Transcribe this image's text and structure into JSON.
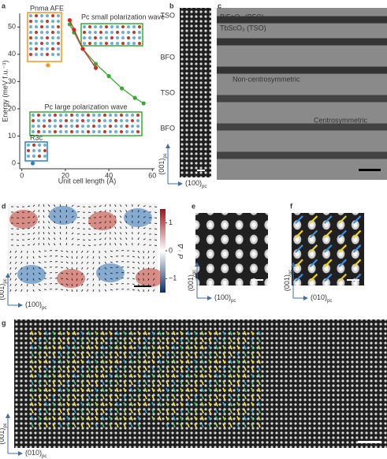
{
  "chart_data": {
    "type": "line",
    "xlabel": "Unit cell length (Å)",
    "ylabel": "Energy (meV f.u.⁻¹)",
    "xlim": [
      -1,
      61
    ],
    "ylim": [
      -2,
      55
    ],
    "xticks": [
      0,
      20,
      40,
      60
    ],
    "yticks": [
      0,
      10,
      20,
      30,
      40,
      50
    ],
    "series": [
      {
        "color": "#3aaa35",
        "x": [
          22,
          24,
          28,
          34,
          40,
          46,
          52,
          56
        ],
        "values": [
          51,
          48,
          42,
          36.5,
          32,
          27.5,
          24,
          22
        ]
      },
      {
        "color": "#d7261e",
        "x": [
          22,
          24,
          28,
          34
        ],
        "values": [
          52.5,
          49,
          42,
          35
        ]
      },
      {
        "color": "#f7941d",
        "x": [
          12
        ],
        "values": [
          36
        ]
      },
      {
        "color": "#2f7fc1",
        "x": [
          5
        ],
        "values": [
          0
        ]
      }
    ],
    "annotations": [
      "Pnma AFE",
      "Pc small polarization wave",
      "Pc large polarization wave",
      "R3c"
    ]
  },
  "panels": {
    "labels": [
      "a",
      "b",
      "c",
      "d",
      "e",
      "f",
      "g"
    ],
    "b": {
      "layers": [
        "TSO",
        "BFO",
        "TSO",
        "BFO"
      ],
      "axis_v": {
        "main": "(001)",
        "sub": "pc"
      },
      "axis_h": {
        "main": "(100)",
        "sub": "pc"
      }
    },
    "c": {
      "materials": [
        "BiFeO₃ (BFO)",
        "TbScO₃ (TSO)"
      ],
      "regions": [
        "Non-centrosymmetric",
        "Centrosymmetric"
      ]
    },
    "d": {
      "colorbar": {
        "label": "∇ · P",
        "lim": [
          -1.5,
          1.5
        ],
        "ticks": [
          1,
          0,
          {
            "value": -1,
            "label": "−1"
          }
        ]
      },
      "axis_v": {
        "main": "(001)",
        "sub": "pc"
      },
      "axis_h": {
        "main": "(100)",
        "sub": "pc"
      }
    },
    "e": {
      "axis_v": {
        "main": "(001)",
        "sub": "pc"
      },
      "axis_h": {
        "main": "(100)",
        "sub": "pc"
      }
    },
    "f": {
      "axis_v": {
        "main": "(001)",
        "sub": "pc"
      },
      "axis_h": {
        "main": "(010)",
        "sub": "pc"
      }
    },
    "g": {
      "axis_v": {
        "main": "(001)",
        "sub": "pc"
      },
      "axis_h": {
        "main": "(010)",
        "sub": "pc"
      }
    }
  }
}
